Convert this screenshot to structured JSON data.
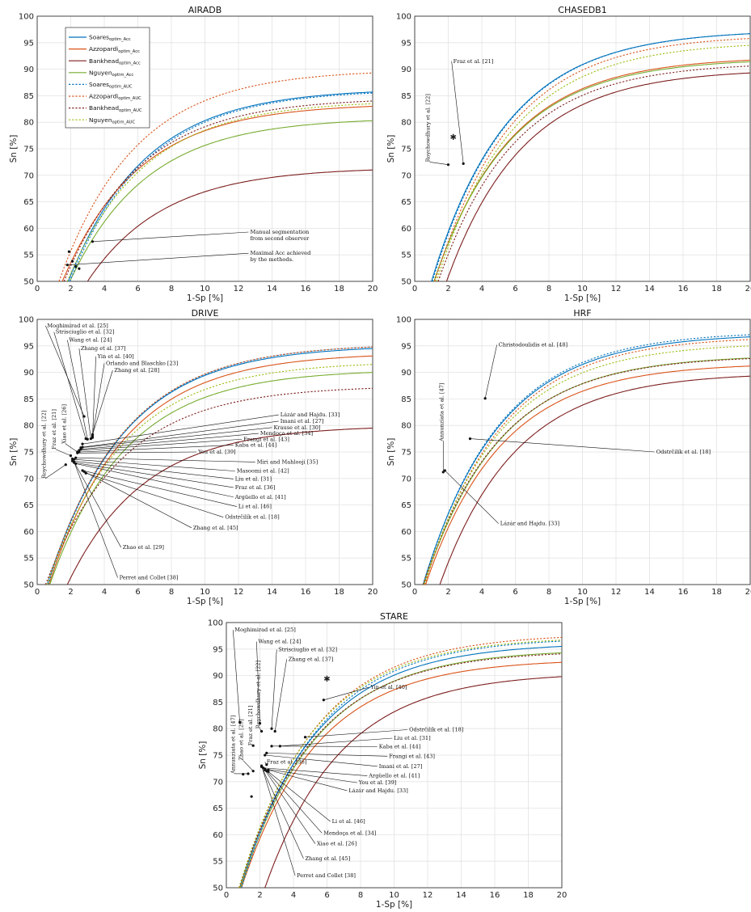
{
  "legend": {
    "entries": [
      {
        "base": "Soares",
        "sub": "optim_Acc",
        "color": "#0072bd",
        "dashed": false
      },
      {
        "base": "Azzopardi",
        "sub": "optim_Acc",
        "color": "#d95319",
        "dashed": false
      },
      {
        "base": "Bankhead",
        "sub": "optim_Acc",
        "color": "#7e1e1e",
        "dashed": false
      },
      {
        "base": "Nguyen",
        "sub": "optim_Acc",
        "color": "#77ac30",
        "dashed": false
      },
      {
        "base": "Soares",
        "sub": "optim_AUC",
        "color": "#0072bd",
        "dashed": true
      },
      {
        "base": "Azzopardi",
        "sub": "optim_AUC",
        "color": "#d95319",
        "dashed": true
      },
      {
        "base": "Bankhead",
        "sub": "optim_AUC",
        "color": "#7e1e1e",
        "dashed": true
      },
      {
        "base": "Nguyen",
        "sub": "optim_AUC",
        "color": "#9cbd14",
        "dashed": true
      }
    ]
  },
  "chart_data": [
    {
      "type": "line",
      "title": "AIRADB",
      "xlabel": "1-Sp [%]",
      "ylabel": "Sn [%]",
      "xlim": [
        0,
        20
      ],
      "ylim": [
        50,
        100
      ],
      "grid": true,
      "xticks": [
        "0",
        "2",
        "4",
        "6",
        "8",
        "10",
        "12",
        "14",
        "16",
        "18",
        "20"
      ],
      "yticks": [
        "50",
        "55",
        "60",
        "65",
        "70",
        "75",
        "80",
        "85",
        "90",
        "95",
        "100"
      ],
      "series": [
        {
          "name": "Soares optim_Acc",
          "x0": 1.85,
          "y20": 85.7
        },
        {
          "name": "Azzopardi optim_Acc",
          "x0": 1.5,
          "y20": 83.0
        },
        {
          "name": "Bankhead optim_Acc",
          "x0": 3.0,
          "y20": 71.0
        },
        {
          "name": "Nguyen optim_Acc",
          "x0": 1.95,
          "y20": 80.3
        },
        {
          "name": "Soares optim_AUC",
          "x0": 1.95,
          "y20": 85.5
        },
        {
          "name": "Azzopardi optim_AUC",
          "x0": 1.3,
          "y20": 89.3
        },
        {
          "name": "Bankhead optim_AUC",
          "x0": 1.6,
          "y20": 84.0
        },
        {
          "name": "Nguyen optim_AUC",
          "x0": 1.8,
          "y20": 83.5
        }
      ],
      "points": [
        {
          "label": "Manual segmentation\nfrom second observer",
          "x": 3.3,
          "y": 57.5,
          "lx": 12.6,
          "ly": 59.3
        },
        {
          "label": "Maximal Acc achieved\nby the methods.",
          "x": 1.8,
          "y": 53.1,
          "lx": 12.6,
          "ly": 55.3
        },
        {
          "x": 2.1,
          "y": 53.8,
          "group": 1
        },
        {
          "x": 2.3,
          "y": 52.8,
          "group": 1
        },
        {
          "x": 2.5,
          "y": 52.4,
          "group": 1
        },
        {
          "x": 1.9,
          "y": 55.6,
          "group": 1
        }
      ]
    },
    {
      "type": "line",
      "title": "CHASEDB1",
      "xlabel": "1-Sp [%]",
      "ylabel": "Sn [%]",
      "xlim": [
        0,
        20
      ],
      "ylim": [
        50,
        100
      ],
      "grid": true,
      "xticks": [
        "0",
        "2",
        "4",
        "6",
        "8",
        "10",
        "12",
        "14",
        "16",
        "18",
        "20"
      ],
      "yticks": [
        "50",
        "55",
        "60",
        "65",
        "70",
        "75",
        "80",
        "85",
        "90",
        "95",
        "100"
      ],
      "series": [
        {
          "name": "Soares optim_Acc",
          "x0": 1.0,
          "y20": 96.7
        },
        {
          "name": "Azzopardi optim_Acc",
          "x0": 1.15,
          "y20": 91.7
        },
        {
          "name": "Bankhead optim_Acc",
          "x0": 1.9,
          "y20": 89.3
        },
        {
          "name": "Nguyen optim_Acc",
          "x0": 1.15,
          "y20": 91.4
        },
        {
          "name": "Soares optim_AUC",
          "x0": 1.05,
          "y20": 96.7
        },
        {
          "name": "Azzopardi optim_AUC",
          "x0": 1.2,
          "y20": 95.8
        },
        {
          "name": "Bankhead optim_AUC",
          "x0": 1.4,
          "y20": 90.6
        },
        {
          "name": "Nguyen optim_AUC",
          "x0": 1.3,
          "y20": 94.5
        }
      ],
      "points": [
        {
          "label": "Fraz et al. [21]",
          "x": 2.9,
          "y": 72.2,
          "lx": 2.2,
          "ly": 91.5
        },
        {
          "label": "Roychowdhury et al. [22]",
          "x": 2.0,
          "y": 72.0,
          "lx": 0.9,
          "ly": 72.5,
          "vertical": true
        },
        {
          "x": 2.3,
          "y": 77.1,
          "star": true
        }
      ]
    },
    {
      "type": "line",
      "title": "DRIVE",
      "xlabel": "1-Sp [%]",
      "ylabel": "Sn [%]",
      "xlim": [
        0,
        20
      ],
      "ylim": [
        50,
        100
      ],
      "grid": true,
      "xticks": [
        "0",
        "2",
        "4",
        "6",
        "8",
        "10",
        "12",
        "14",
        "16",
        "18",
        "20"
      ],
      "yticks": [
        "50",
        "55",
        "60",
        "65",
        "70",
        "75",
        "80",
        "85",
        "90",
        "95",
        "100"
      ],
      "series": [
        {
          "name": "Soares optim_Acc",
          "x0": 0.6,
          "y20": 94.5
        },
        {
          "name": "Azzopardi optim_Acc",
          "x0": 0.7,
          "y20": 93.1
        },
        {
          "name": "Bankhead optim_Acc",
          "x0": 1.8,
          "y20": 79.5
        },
        {
          "name": "Nguyen optim_Acc",
          "x0": 0.75,
          "y20": 90.0
        },
        {
          "name": "Soares optim_AUC",
          "x0": 0.65,
          "y20": 94.8
        },
        {
          "name": "Azzopardi optim_AUC",
          "x0": 0.6,
          "y20": 94.8
        },
        {
          "name": "Bankhead optim_AUC",
          "x0": 0.5,
          "y20": 87.0
        },
        {
          "name": "Nguyen optim_AUC",
          "x0": 0.6,
          "y20": 91.5
        }
      ],
      "points": [
        {
          "label": "Moghimirad et al. [25]",
          "x": 2.8,
          "y": 81.7,
          "lx": 0.5,
          "ly": 98.8
        },
        {
          "label": "Strisciuglio et al. [32]",
          "x": 2.9,
          "y": 77.5,
          "lx": 1.0,
          "ly": 97.6
        },
        {
          "label": "Wang et al. [24]",
          "x": 3.0,
          "y": 77.4,
          "lx": 1.8,
          "ly": 96.1
        },
        {
          "label": "Zhang et al. [37]",
          "x": 3.2,
          "y": 77.5,
          "lx": 2.5,
          "ly": 94.5
        },
        {
          "label": "Yin et al. [40]",
          "x": 3.3,
          "y": 77.7,
          "lx": 3.5,
          "ly": 93.0
        },
        {
          "label": "Orlando and Blaschko [23]",
          "x": 3.3,
          "y": 78.0,
          "lx": 4.0,
          "ly": 91.7
        },
        {
          "label": "Zhang et al. [28]",
          "x": 3.3,
          "y": 78.3,
          "lx": 4.5,
          "ly": 90.4
        },
        {
          "label": "Lázár and Hajdu. [33]",
          "x": 2.7,
          "y": 76.5,
          "lx": 14.4,
          "ly": 82.0
        },
        {
          "label": "Imani et al. [27]",
          "x": 2.7,
          "y": 75.9,
          "lx": 14.4,
          "ly": 80.8
        },
        {
          "label": "Krause et al. [30]",
          "x": 2.6,
          "y": 75.8,
          "lx": 14.0,
          "ly": 79.6
        },
        {
          "label": "Mendoça et al. [34]",
          "x": 2.6,
          "y": 75.5,
          "lx": 13.2,
          "ly": 78.5
        },
        {
          "label": "Frangi et al. [43]",
          "x": 2.5,
          "y": 75.3,
          "lx": 12.2,
          "ly": 77.4
        },
        {
          "label": "Kaba et al. [44]",
          "x": 2.5,
          "y": 75.0,
          "lx": 11.7,
          "ly": 76.3
        },
        {
          "label": "You et al. [39]",
          "x": 2.4,
          "y": 74.8,
          "lx": 9.5,
          "ly": 75.0
        },
        {
          "label": "Miri and Mahlooji [35]",
          "x": 2.3,
          "y": 73.9,
          "lx": 13.0,
          "ly": 73.1
        },
        {
          "label": "Masoomi et al. [42]",
          "x": 2.2,
          "y": 73.6,
          "lx": 11.8,
          "ly": 71.4
        },
        {
          "label": "Liu et al. [31]",
          "x": 2.1,
          "y": 73.3,
          "lx": 11.7,
          "ly": 69.9
        },
        {
          "label": "Fraz et al. [36]",
          "x": 2.2,
          "y": 73.0,
          "lx": 11.7,
          "ly": 68.3
        },
        {
          "label": "Argüello et al. [41]",
          "x": 2.3,
          "y": 72.8,
          "lx": 11.7,
          "ly": 66.5
        },
        {
          "label": "Li et al. [46]",
          "x": 2.7,
          "y": 71.5,
          "lx": 11.9,
          "ly": 64.7
        },
        {
          "label": "Odstrčilík et al. [18]",
          "x": 2.9,
          "y": 71.0,
          "lx": 11.1,
          "ly": 62.7
        },
        {
          "label": "Zhang et al. [45]",
          "x": 2.8,
          "y": 71.3,
          "lx": 9.2,
          "ly": 60.7
        },
        {
          "label": "Zhao et al. [29]",
          "x": 2.1,
          "y": 73.7,
          "lx": 5.0,
          "ly": 57.0
        },
        {
          "label": "Perret and Collet [38]",
          "x": 2.2,
          "y": 73.1,
          "lx": 4.8,
          "ly": 51.3
        },
        {
          "label": "Roychowdhury et al. [22]",
          "x": 1.7,
          "y": 72.6,
          "lx": 0.5,
          "ly": 70.0,
          "vertical": true
        },
        {
          "label": "Fraz et al. [21]",
          "x": 2.0,
          "y": 74.3,
          "lx": 1.1,
          "ly": 75.5,
          "vertical": true
        },
        {
          "label": "Xiao et al. [26]",
          "x": 2.4,
          "y": 75.0,
          "lx": 1.7,
          "ly": 76.5,
          "vertical": true
        }
      ]
    },
    {
      "type": "line",
      "title": "HRF",
      "xlabel": "1-Sp [%]",
      "ylabel": "Sn [%]",
      "xlim": [
        0,
        20
      ],
      "ylim": [
        50,
        100
      ],
      "grid": true,
      "xticks": [
        "0",
        "2",
        "4",
        "6",
        "8",
        "10",
        "12",
        "14",
        "16",
        "18",
        "20"
      ],
      "yticks": [
        "50",
        "55",
        "60",
        "65",
        "70",
        "75",
        "80",
        "85",
        "90",
        "95",
        "100"
      ],
      "series": [
        {
          "name": "Soares optim_Acc",
          "x0": 0.5,
          "y20": 96.7
        },
        {
          "name": "Azzopardi optim_Acc",
          "x0": 0.65,
          "y20": 91.2
        },
        {
          "name": "Bankhead optim_Acc",
          "x0": 1.5,
          "y20": 89.3
        },
        {
          "name": "Nguyen optim_Acc",
          "x0": 0.55,
          "y20": 92.7
        },
        {
          "name": "Soares optim_AUC",
          "x0": 0.5,
          "y20": 97.1
        },
        {
          "name": "Azzopardi optim_AUC",
          "x0": 0.6,
          "y20": 96.2
        },
        {
          "name": "Bankhead optim_AUC",
          "x0": 0.5,
          "y20": 92.6
        },
        {
          "name": "Nguyen optim_AUC",
          "x0": 0.55,
          "y20": 95.0
        }
      ],
      "points": [
        {
          "label": "Christodoulidis et al. [48]",
          "x": 4.2,
          "y": 85.1,
          "lx": 4.9,
          "ly": 95.2
        },
        {
          "label": "Odstrčilík et al. [18]",
          "x": 3.3,
          "y": 77.5,
          "lx": 14.3,
          "ly": 75.0
        },
        {
          "label": "Lázár and Hajdu. [33]",
          "x": 1.8,
          "y": 71.5,
          "lx": 5.0,
          "ly": 61.5
        },
        {
          "label": "Annunziata et al. [47]",
          "x": 1.7,
          "y": 71.2,
          "lx": 1.7,
          "ly": 77.0,
          "vertical": true
        }
      ]
    },
    {
      "type": "line",
      "title": "STARE",
      "xlabel": "1-Sp [%]",
      "ylabel": "Sn [%]",
      "xlim": [
        0,
        20
      ],
      "ylim": [
        50,
        100
      ],
      "grid": true,
      "xticks": [
        "0",
        "2",
        "4",
        "6",
        "8",
        "10",
        "12",
        "14",
        "16",
        "18",
        "20"
      ],
      "yticks": [
        "50",
        "55",
        "60",
        "65",
        "70",
        "75",
        "80",
        "85",
        "90",
        "95",
        "100"
      ],
      "series": [
        {
          "name": "Soares optim_Acc",
          "x0": 0.8,
          "y20": 95.5
        },
        {
          "name": "Azzopardi optim_Acc",
          "x0": 0.9,
          "y20": 92.5
        },
        {
          "name": "Bankhead optim_Acc",
          "x0": 2.3,
          "y20": 89.8
        },
        {
          "name": "Nguyen optim_Acc",
          "x0": 0.85,
          "y20": 94.3
        },
        {
          "name": "Soares optim_AUC",
          "x0": 0.9,
          "y20": 96.5
        },
        {
          "name": "Azzopardi optim_AUC",
          "x0": 0.8,
          "y20": 97.2
        },
        {
          "name": "Bankhead optim_AUC",
          "x0": 0.75,
          "y20": 94.1
        },
        {
          "name": "Nguyen optim_AUC",
          "x0": 0.75,
          "y20": 96.7
        }
      ],
      "points": [
        {
          "label": "Moghimirad et al. [25]",
          "x": 0.8,
          "y": 81.2,
          "lx": 0.4,
          "ly": 98.6
        },
        {
          "label": "Wang et al. [24]",
          "x": 2.0,
          "y": 81.0,
          "lx": 1.8,
          "ly": 96.4
        },
        {
          "label": "Strisciuglio et al. [32]",
          "x": 2.7,
          "y": 80.0,
          "lx": 3.0,
          "ly": 94.9
        },
        {
          "label": "Zhang et al. [37]",
          "x": 2.9,
          "y": 79.5,
          "lx": 3.6,
          "ly": 93.1
        },
        {
          "label": "Yin et al. [40]",
          "x": 5.8,
          "y": 85.4,
          "lx": 8.5,
          "ly": 87.8
        },
        {
          "label": "Odstrčilík et al. [18]",
          "x": 4.7,
          "y": 78.4,
          "lx": 10.8,
          "ly": 79.8
        },
        {
          "label": "Liu et al. [31]",
          "x": 3.2,
          "y": 76.7,
          "lx": 9.9,
          "ly": 78.2
        },
        {
          "label": "Kaba et al. [44]",
          "x": 2.7,
          "y": 76.7,
          "lx": 9.0,
          "ly": 76.6
        },
        {
          "label": "Frangi et al. [43]",
          "x": 2.4,
          "y": 75.4,
          "lx": 9.6,
          "ly": 74.8
        },
        {
          "label": "Imani et al. [27]",
          "x": 2.3,
          "y": 75.0,
          "lx": 9.0,
          "ly": 72.9
        },
        {
          "label": "Argüello et al. [41]",
          "x": 2.2,
          "y": 72.6,
          "lx": 8.4,
          "ly": 71.1
        },
        {
          "label": "You et al. [39]",
          "x": 2.3,
          "y": 72.4,
          "lx": 7.8,
          "ly": 69.8
        },
        {
          "label": "Lázár and Hajdu. [33]",
          "x": 2.5,
          "y": 72.2,
          "lx": 7.2,
          "ly": 68.3
        },
        {
          "label": "Fraz et al. [36]",
          "x": 2.4,
          "y": 73.2,
          "lx": 2.3,
          "ly": 73.7
        },
        {
          "label": "Li et al. [46]",
          "x": 2.5,
          "y": 71.9,
          "lx": 6.2,
          "ly": 62.5
        },
        {
          "label": "Mendoça et al. [34]",
          "x": 2.4,
          "y": 72.0,
          "lx": 5.7,
          "ly": 60.3
        },
        {
          "label": "Xiao et al. [26]",
          "x": 2.3,
          "y": 72.2,
          "lx": 5.3,
          "ly": 58.3
        },
        {
          "label": "Zhang et al. [45]",
          "x": 2.1,
          "y": 72.8,
          "lx": 4.6,
          "ly": 55.5
        },
        {
          "label": "Perret and Collet [38]",
          "x": 2.1,
          "y": 73.0,
          "lx": 4.1,
          "ly": 52.3
        },
        {
          "label": "Annunziata et al. [47]",
          "x": 1.3,
          "y": 71.5,
          "lx": 0.5,
          "ly": 71.5,
          "vertical": true
        },
        {
          "label": "Zhao et al. [29]",
          "x": 1.6,
          "y": 72.0,
          "lx": 1.0,
          "ly": 74.0,
          "vertical": true
        },
        {
          "label": "Fraz et al. [21]",
          "x": 1.6,
          "y": 76.8,
          "lx": 1.55,
          "ly": 76.8,
          "vertical": true
        },
        {
          "label": "Roychowdhury et al. [22]",
          "x": 2.1,
          "y": 79.5,
          "lx": 2.0,
          "ly": 80.0,
          "vertical": true
        },
        {
          "x": 1.5,
          "y": 67.2,
          "dot": true
        },
        {
          "x": 1.0,
          "y": 71.4,
          "dot": true
        },
        {
          "x": 6.0,
          "y": 89.3,
          "star": true
        }
      ]
    }
  ]
}
